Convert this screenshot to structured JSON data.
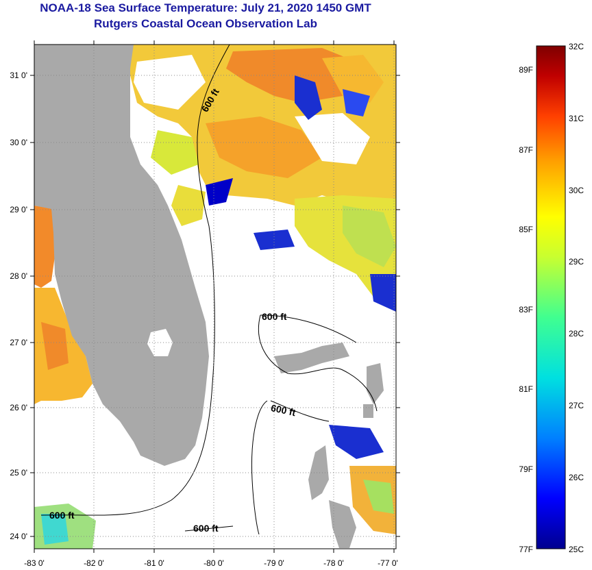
{
  "title": {
    "line1": "NOAA-18 Sea Surface Temperature:  July 21, 2020 1450 GMT",
    "line2": "Rutgers Coastal Ocean Observation Lab"
  },
  "map": {
    "lat_labels": [
      "31 0'",
      "30 0'",
      "29 0'",
      "28 0'",
      "27 0'",
      "26 0'",
      "25 0'",
      "24 0'"
    ],
    "lon_labels": [
      "-83 0'",
      "-82 0'",
      "-81 0'",
      "-80 0'",
      "-79 0'",
      "-78 0'",
      "-77 0'"
    ],
    "contour_labels": [
      "600 ft",
      "600 ft",
      "600 ft",
      "600 ft",
      "600 ft"
    ],
    "land_color": "#a9a9a9",
    "nodata_color": "#ffffff"
  },
  "colorbar": {
    "celsius_labels": [
      "32C",
      "31C",
      "30C",
      "29C",
      "28C",
      "27C",
      "26C",
      "25C"
    ],
    "fahrenheit_labels": [
      "89F",
      "87F",
      "85F",
      "83F",
      "81F",
      "79F",
      "77F"
    ],
    "min_c": 25,
    "max_c": 32,
    "colors": [
      "#00008f",
      "#0000ff",
      "#0080ff",
      "#00e0e0",
      "#40ff90",
      "#c8ff30",
      "#ffff00",
      "#ffa000",
      "#ff4000",
      "#c00000",
      "#7f0000"
    ]
  }
}
